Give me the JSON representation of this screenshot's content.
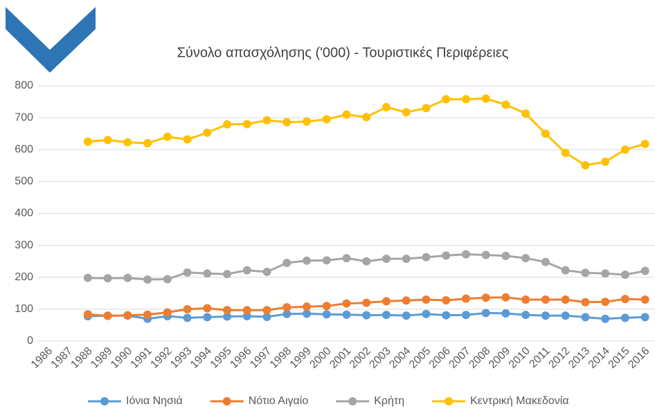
{
  "chart_data": {
    "type": "line",
    "title": "Σύνολο απασχόλησης ('000) - Τουριστικές Περιφέρειες",
    "categories": [
      "1986",
      "1987",
      "1988",
      "1989",
      "1990",
      "1991",
      "1992",
      "1993",
      "1994",
      "1995",
      "1996",
      "1997",
      "1998",
      "1999",
      "2000",
      "2001",
      "2002",
      "2003",
      "2004",
      "2005",
      "2006",
      "2007",
      "2008",
      "2009",
      "2010",
      "2011",
      "2012",
      "2013",
      "2014",
      "2015",
      "2016"
    ],
    "series": [
      {
        "name": "Ιόνια Νησιά",
        "color": "#5b9bd5",
        "values": [
          null,
          null,
          78,
          80,
          80,
          70,
          78,
          73,
          75,
          77,
          78,
          76,
          85,
          86,
          84,
          83,
          81,
          82,
          80,
          85,
          81,
          82,
          88,
          87,
          82,
          80,
          80,
          75,
          70,
          73,
          75
        ]
      },
      {
        "name": "Νότιο Αιγαίο",
        "color": "#ed7d31",
        "values": [
          null,
          null,
          84,
          79,
          81,
          83,
          90,
          100,
          103,
          97,
          97,
          97,
          106,
          108,
          110,
          118,
          120,
          125,
          127,
          130,
          128,
          133,
          136,
          137,
          130,
          130,
          130,
          122,
          123,
          132,
          130
        ]
      },
      {
        "name": "Κρήτη",
        "color": "#a5a5a5",
        "values": [
          null,
          null,
          198,
          197,
          198,
          193,
          194,
          215,
          212,
          210,
          222,
          217,
          245,
          252,
          253,
          260,
          250,
          258,
          258,
          263,
          268,
          272,
          270,
          267,
          260,
          248,
          222,
          214,
          212,
          208,
          220
        ]
      },
      {
        "name": "Κεντρική Μακεδονία",
        "color": "#ffc000",
        "values": [
          null,
          null,
          625,
          630,
          623,
          620,
          640,
          632,
          653,
          679,
          680,
          692,
          686,
          688,
          695,
          710,
          702,
          733,
          717,
          730,
          758,
          758,
          760,
          741,
          713,
          650,
          590,
          551,
          562,
          600,
          618
        ]
      }
    ],
    "ylim": [
      0,
      800
    ],
    "yticks": [
      0,
      100,
      200,
      300,
      400,
      500,
      600,
      700,
      800
    ],
    "grid": true,
    "legend": "bottom"
  }
}
